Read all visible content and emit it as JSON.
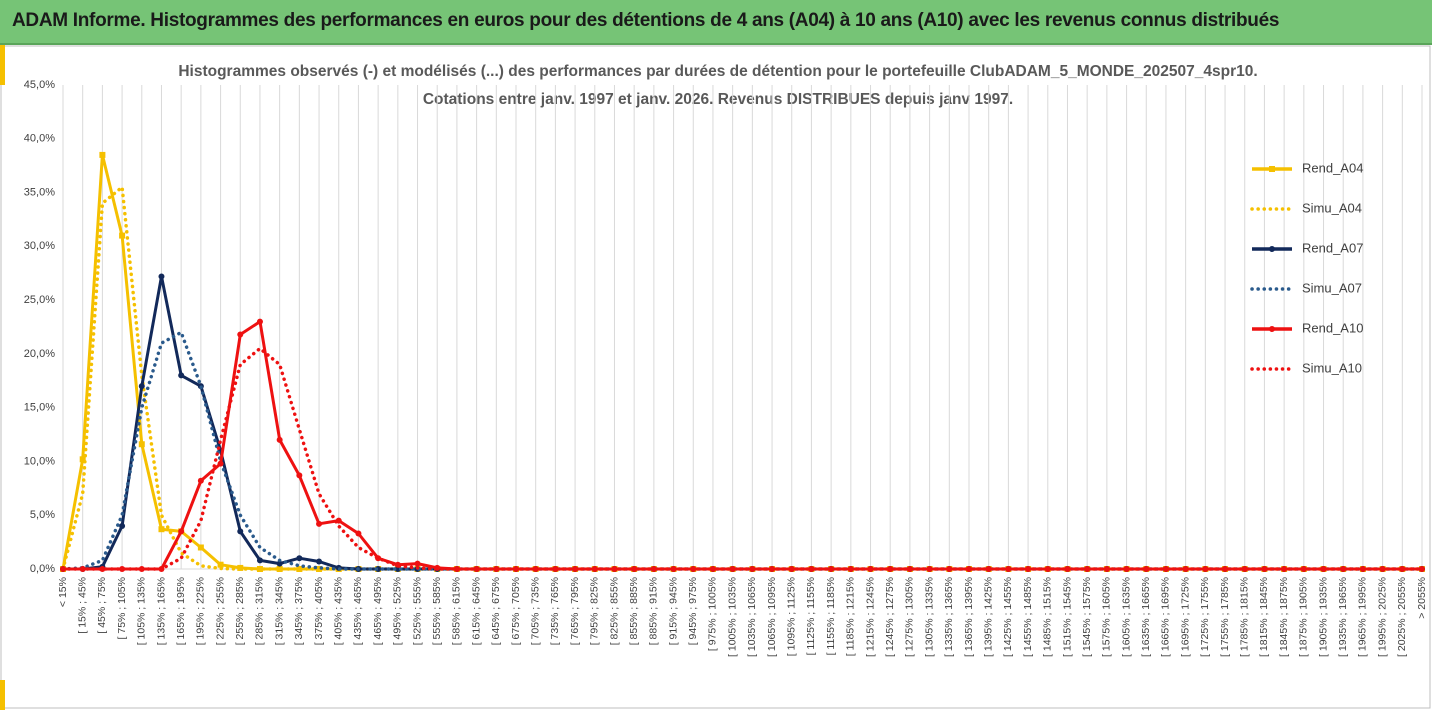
{
  "header": {
    "title": "ADAM Informe. Histogrammes des performances en euros pour des détentions de 4 ans (A04) à 10 ans (A10) avec les revenus connus distribués"
  },
  "chart_data": {
    "type": "line",
    "title": [
      "Histogrammes observés (-) et modélisés (...) des performances par durées de détention pour le portefeuille ClubADAM_5_MONDE_202507_4spr10.",
      "Cotations entre janv. 1997 et janv. 2026. Revenus DISTRIBUES depuis janv 1997."
    ],
    "categories": [
      "< 15%",
      "[ 15% ; 45%",
      "[ 45% ; 75%",
      "[ 75% ; 105%",
      "[ 105% ; 135%",
      "[ 135% ; 165%",
      "[ 165% ; 195%",
      "[ 195% ; 225%",
      "[ 225% ; 255%",
      "[ 255% ; 285%",
      "[ 285% ; 315%",
      "[ 315% ; 345%",
      "[ 345% ; 375%",
      "[ 375% ; 405%",
      "[ 405% ; 435%",
      "[ 435% ; 465%",
      "[ 465% ; 495%",
      "[ 495% ; 525%",
      "[ 525% ; 555%",
      "[ 555% ; 585%",
      "[ 585% ; 615%",
      "[ 615% ; 645%",
      "[ 645% ; 675%",
      "[ 675% ; 705%",
      "[ 705% ; 735%",
      "[ 735% ; 765%",
      "[ 765% ; 795%",
      "[ 795% ; 825%",
      "[ 825% ; 855%",
      "[ 855% ; 885%",
      "[ 885% ; 915%",
      "[ 915% ; 945%",
      "[ 945% ; 975%",
      "[ 975% ; 1005%",
      "[ 1005% ; 1035%",
      "[ 1035% ; 1065%",
      "[ 1065% ; 1095%",
      "[ 1095% ; 1125%",
      "[ 1125% ; 1155%",
      "[ 1155% ; 1185%",
      "[ 1185% ; 1215%",
      "[ 1215% ; 1245%",
      "[ 1245% ; 1275%",
      "[ 1275% ; 1305%",
      "[ 1305% ; 1335%",
      "[ 1335% ; 1365%",
      "[ 1365% ; 1395%",
      "[ 1395% ; 1425%",
      "[ 1425% ; 1455%",
      "[ 1455% ; 1485%",
      "[ 1485% ; 1515%",
      "[ 1515% ; 1545%",
      "[ 1545% ; 1575%",
      "[ 1575% ; 1605%",
      "[ 1605% ; 1635%",
      "[ 1635% ; 1665%",
      "[ 1665% ; 1695%",
      "[ 1695% ; 1725%",
      "[ 1725% ; 1755%",
      "[ 1755% ; 1785%",
      "[ 1785% ; 1815%",
      "[ 1815% ; 1845%",
      "[ 1845% ; 1875%",
      "[ 1875% ; 1905%",
      "[ 1905% ; 1935%",
      "[ 1935% ; 1965%",
      "[ 1965% ; 1995%",
      "[ 1995% ; 2025%",
      "[ 2025% ; 2055%",
      "> 2055%"
    ],
    "series": [
      {
        "name": "Rend_A04",
        "color": "#f5c000",
        "dash": false,
        "marker": "square",
        "values": [
          0,
          10.2,
          38.5,
          31,
          11.6,
          3.7,
          3.5,
          2,
          0.4,
          0.1,
          0,
          0,
          0,
          0,
          0,
          0,
          0,
          0,
          0,
          0,
          0,
          0,
          0,
          0,
          0,
          0,
          0,
          0,
          0,
          0,
          0,
          0,
          0,
          0,
          0,
          0,
          0,
          0,
          0,
          0,
          0,
          0,
          0,
          0,
          0,
          0,
          0,
          0,
          0,
          0,
          0,
          0,
          0,
          0,
          0,
          0,
          0,
          0,
          0,
          0,
          0,
          0,
          0,
          0,
          0,
          0,
          0,
          0,
          0,
          0
        ]
      },
      {
        "name": "Simu_A04",
        "color": "#f5c000",
        "dash": true,
        "marker": null,
        "values": [
          0,
          7,
          34,
          35.5,
          18,
          5,
          1.5,
          0.3,
          0.05,
          0,
          0,
          0,
          0,
          0,
          0,
          0,
          0,
          0,
          0,
          0,
          0,
          0,
          0,
          0,
          0,
          0,
          0,
          0,
          0,
          0,
          0,
          0,
          0,
          0,
          0,
          0,
          0,
          0,
          0,
          0,
          0,
          0,
          0,
          0,
          0,
          0,
          0,
          0,
          0,
          0,
          0,
          0,
          0,
          0,
          0,
          0,
          0,
          0,
          0,
          0,
          0,
          0,
          0,
          0,
          0,
          0,
          0,
          0,
          0,
          0
        ]
      },
      {
        "name": "Rend_A07",
        "color": "#12295a",
        "dash": false,
        "marker": "circle",
        "values": [
          0,
          0,
          0.2,
          4,
          17,
          27.2,
          18,
          17,
          11,
          3.5,
          0.8,
          0.5,
          1,
          0.7,
          0.1,
          0,
          0,
          0,
          0,
          0,
          0,
          0,
          0,
          0,
          0,
          0,
          0,
          0,
          0,
          0,
          0,
          0,
          0,
          0,
          0,
          0,
          0,
          0,
          0,
          0,
          0,
          0,
          0,
          0,
          0,
          0,
          0,
          0,
          0,
          0,
          0,
          0,
          0,
          0,
          0,
          0,
          0,
          0,
          0,
          0,
          0,
          0,
          0,
          0,
          0,
          0,
          0,
          0,
          0,
          0
        ]
      },
      {
        "name": "Simu_A07",
        "color": "#2a5a8c",
        "dash": true,
        "marker": null,
        "values": [
          0,
          0.1,
          0.8,
          5,
          15,
          21,
          22,
          17,
          10,
          5,
          2,
          0.8,
          0.3,
          0.1,
          0,
          0,
          0,
          0,
          0,
          0,
          0,
          0,
          0,
          0,
          0,
          0,
          0,
          0,
          0,
          0,
          0,
          0,
          0,
          0,
          0,
          0,
          0,
          0,
          0,
          0,
          0,
          0,
          0,
          0,
          0,
          0,
          0,
          0,
          0,
          0,
          0,
          0,
          0,
          0,
          0,
          0,
          0,
          0,
          0,
          0,
          0,
          0,
          0,
          0,
          0,
          0,
          0,
          0,
          0,
          0
        ]
      },
      {
        "name": "Rend_A10",
        "color": "#ee1111",
        "dash": false,
        "marker": "circle",
        "values": [
          0,
          0,
          0,
          0,
          0,
          0,
          3.5,
          8.2,
          9.8,
          21.8,
          23,
          12,
          8.7,
          4.2,
          4.5,
          3.3,
          1,
          0.4,
          0.5,
          0.1,
          0,
          0,
          0,
          0,
          0,
          0,
          0,
          0,
          0,
          0,
          0,
          0,
          0,
          0,
          0,
          0,
          0,
          0,
          0,
          0,
          0,
          0,
          0,
          0,
          0,
          0,
          0,
          0,
          0,
          0,
          0,
          0,
          0,
          0,
          0,
          0,
          0,
          0,
          0,
          0,
          0,
          0,
          0,
          0,
          0,
          0,
          0,
          0,
          0,
          0
        ]
      },
      {
        "name": "Simu_A10",
        "color": "#ee1111",
        "dash": true,
        "marker": null,
        "values": [
          0,
          0,
          0,
          0,
          0,
          0,
          1,
          4.5,
          12,
          19,
          20.5,
          19,
          13,
          7,
          4,
          2,
          1,
          0.3,
          0.1,
          0,
          0,
          0,
          0,
          0,
          0,
          0,
          0,
          0,
          0,
          0,
          0,
          0,
          0,
          0,
          0,
          0,
          0,
          0,
          0,
          0,
          0,
          0,
          0,
          0,
          0,
          0,
          0,
          0,
          0,
          0,
          0,
          0,
          0,
          0,
          0,
          0,
          0,
          0,
          0,
          0,
          0,
          0,
          0,
          0,
          0,
          0,
          0,
          0,
          0,
          0
        ]
      }
    ],
    "ylim": [
      0,
      45
    ],
    "yticks": [
      {
        "value": 0,
        "label": "0,0%"
      },
      {
        "value": 5,
        "label": "5,0%"
      },
      {
        "value": 10,
        "label": "10,0%"
      },
      {
        "value": 15,
        "label": "15,0%"
      },
      {
        "value": 20,
        "label": "20,0%"
      },
      {
        "value": 25,
        "label": "25,0%"
      },
      {
        "value": 30,
        "label": "30,0%"
      },
      {
        "value": 35,
        "label": "35,0%"
      },
      {
        "value": 40,
        "label": "40,0%"
      },
      {
        "value": 45,
        "label": "45,0%"
      }
    ],
    "grid": "x",
    "legend": "right"
  }
}
